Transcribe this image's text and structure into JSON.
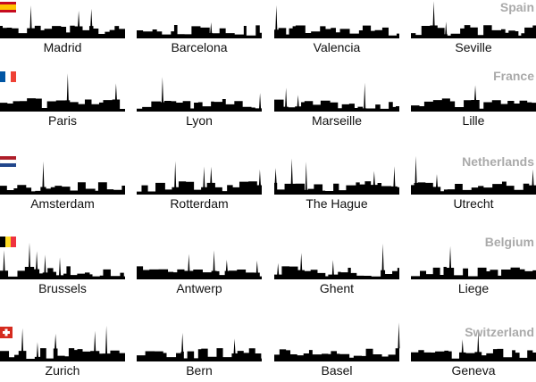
{
  "countries": [
    {
      "name": "Spain",
      "cities": [
        "Madrid",
        "Barcelona",
        "Valencia",
        "Seville"
      ]
    },
    {
      "name": "France",
      "cities": [
        "Paris",
        "Lyon",
        "Marseille",
        "Lille"
      ]
    },
    {
      "name": "Netherlands",
      "cities": [
        "Amsterdam",
        "Rotterdam",
        "The Hague",
        "Utrecht"
      ]
    },
    {
      "name": "Belgium",
      "cities": [
        "Brussels",
        "Antwerp",
        "Ghent",
        "Liege"
      ]
    },
    {
      "name": "Switzerland",
      "cities": [
        "Zurich",
        "Bern",
        "Basel",
        "Geneva"
      ]
    }
  ]
}
